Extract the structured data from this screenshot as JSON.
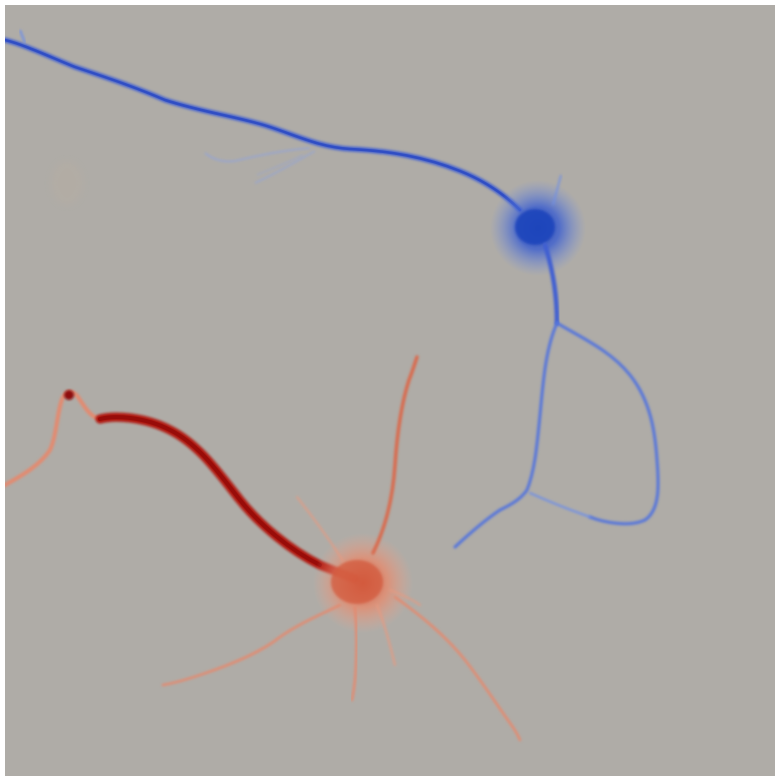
{
  "image": {
    "kind": "microscopy-render",
    "colors": {
      "background": "#afaca7",
      "frame": "#ffffff",
      "blue_neuron_light": "#6f8fe6",
      "blue_neuron_mid": "#3f5fd2",
      "blue_neuron_dark": "#1c3fb8",
      "red_neuron_light": "#f0a38a",
      "red_neuron_mid": "#d8583c",
      "red_neuron_dark": "#a8100c"
    }
  }
}
